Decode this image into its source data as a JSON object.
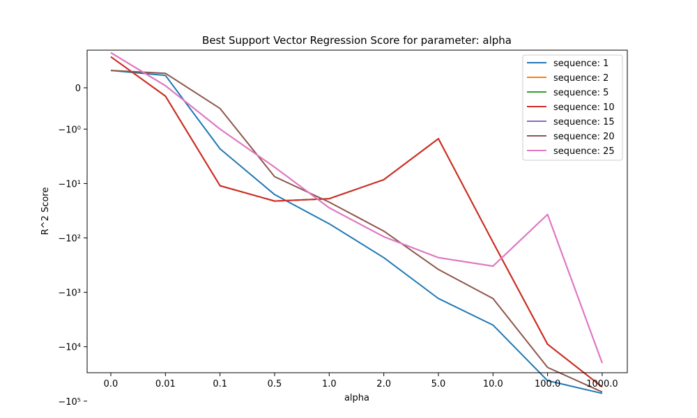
{
  "chart_data": {
    "type": "line",
    "title": "Best Support Vector Regression Score for parameter: alpha",
    "xlabel": "alpha",
    "ylabel": "R^2 Score",
    "categories": [
      "0.0",
      "0.01",
      "0.1",
      "0.5",
      "1.0",
      "2.0",
      "5.0",
      "10.0",
      "100.0",
      "1000.0"
    ],
    "y_scale": "symlog",
    "y_ticks": [
      {
        "value": 0,
        "label": "0"
      },
      {
        "value": -1,
        "label": "−10⁰"
      },
      {
        "value": -10,
        "label": "−10¹"
      },
      {
        "value": -100,
        "label": "−10²"
      },
      {
        "value": -1000,
        "label": "−10³"
      },
      {
        "value": -10000,
        "label": "−10⁴"
      },
      {
        "value": -100000,
        "label": "−10⁵"
      }
    ],
    "legend_position": "top-right",
    "grid": false,
    "series": [
      {
        "name": "sequence: 1",
        "color": "#1f77b4",
        "values": [
          0.42,
          0.3,
          -2.3,
          -16,
          -55,
          -230,
          -1300,
          -4000,
          -42000,
          -72000
        ]
      },
      {
        "name": "sequence: 2",
        "color": "#ff7f0e",
        "values": [
          0.75,
          -0.2,
          -11,
          -21,
          -19,
          -8.5,
          -1.5,
          -120,
          -9000,
          -55000
        ]
      },
      {
        "name": "sequence: 5",
        "color": "#2ca02c",
        "values": [
          0.75,
          -0.2,
          -11,
          -21,
          -19,
          -8.5,
          -1.5,
          -120,
          -9000,
          -55000
        ]
      },
      {
        "name": "sequence: 10",
        "color": "#d62728",
        "values": [
          0.75,
          -0.2,
          -11,
          -21,
          -19,
          -8.5,
          -1.5,
          -120,
          -9000,
          -55000
        ]
      },
      {
        "name": "sequence: 15",
        "color": "#9467bd",
        "values": [
          0.85,
          0.05,
          -1,
          -5,
          -28,
          -95,
          -230,
          -330,
          -37,
          -20000
        ]
      },
      {
        "name": "sequence: 20",
        "color": "#8c564b",
        "values": [
          0.42,
          0.35,
          -0.5,
          -7.5,
          -22,
          -75,
          -380,
          -1300,
          -24000,
          -68000
        ]
      },
      {
        "name": "sequence: 25",
        "color": "#e377c2",
        "values": [
          0.85,
          0.05,
          -1,
          -5,
          -28,
          -95,
          -230,
          -330,
          -37,
          -20000
        ]
      }
    ]
  }
}
